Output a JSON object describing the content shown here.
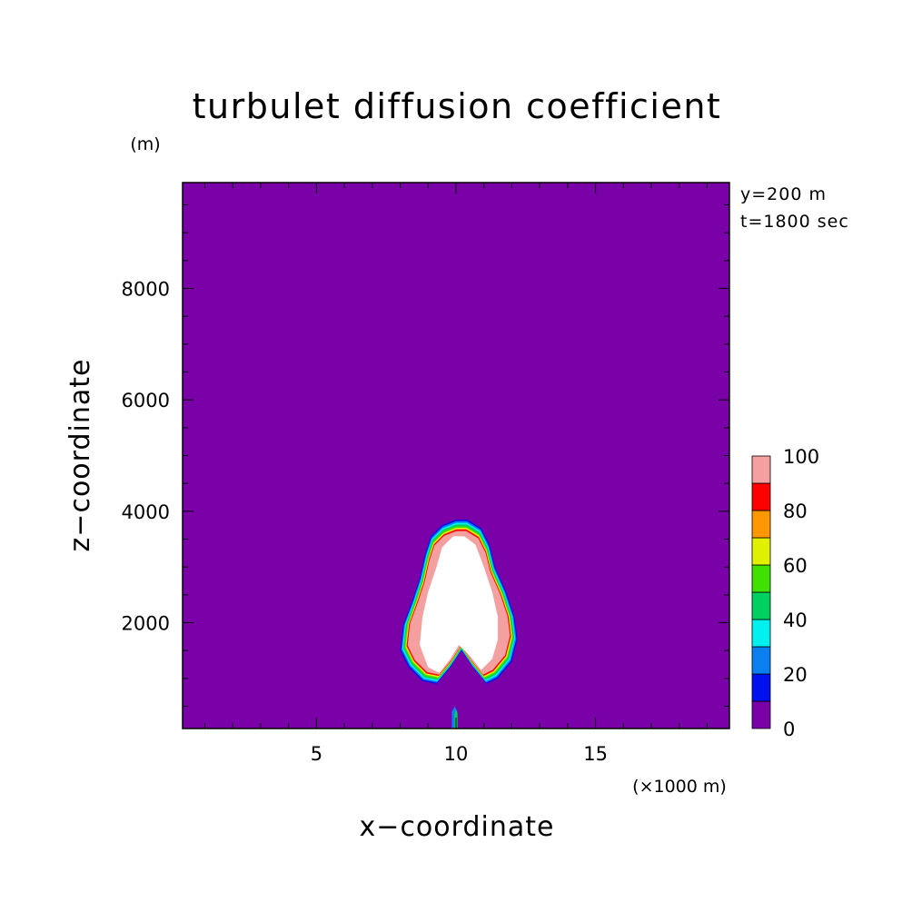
{
  "chart_data": {
    "type": "contour",
    "title": "turbulet diffusion coefficient",
    "xlabel": "x−coordinate",
    "ylabel": "z−coordinate",
    "x_unit": "(×1000 m)",
    "y_unit": "(m)",
    "annotations": [
      "y=200 m",
      "t=1800 sec"
    ],
    "xlim": [
      0.2,
      19.8
    ],
    "ylim": [
      100,
      9900
    ],
    "x_ticks": [
      5,
      10,
      15
    ],
    "y_ticks": [
      2000,
      4000,
      6000,
      8000
    ],
    "background_level": 0,
    "colorbar": {
      "levels": [
        0,
        10,
        20,
        30,
        40,
        50,
        60,
        70,
        80,
        90,
        100
      ],
      "tick_labels": [
        "0",
        "20",
        "40",
        "60",
        "80",
        "100"
      ],
      "colors": [
        "#7a00a8",
        "#0010ee",
        "#0a7ff0",
        "#00f0f0",
        "#00d060",
        "#40e000",
        "#e0f000",
        "#ff9800",
        "#ff0000",
        "#f4a0a0"
      ]
    },
    "plume_outline": [
      [
        8.0,
        1500
      ],
      [
        8.1,
        1950
      ],
      [
        8.4,
        2350
      ],
      [
        8.7,
        2800
      ],
      [
        8.9,
        3250
      ],
      [
        9.1,
        3550
      ],
      [
        9.5,
        3750
      ],
      [
        10.0,
        3850
      ],
      [
        10.4,
        3850
      ],
      [
        10.9,
        3700
      ],
      [
        11.2,
        3400
      ],
      [
        11.4,
        3000
      ],
      [
        11.8,
        2550
      ],
      [
        12.1,
        2100
      ],
      [
        12.2,
        1700
      ],
      [
        12.0,
        1300
      ],
      [
        11.5,
        1000
      ],
      [
        11.1,
        900
      ],
      [
        10.6,
        1200
      ],
      [
        10.2,
        1500
      ],
      [
        9.8,
        1200
      ],
      [
        9.3,
        900
      ],
      [
        8.8,
        950
      ],
      [
        8.3,
        1200
      ]
    ],
    "plume_core": [
      [
        8.7,
        1600
      ],
      [
        8.8,
        2100
      ],
      [
        9.0,
        2550
      ],
      [
        9.3,
        3000
      ],
      [
        9.5,
        3350
      ],
      [
        9.9,
        3550
      ],
      [
        10.3,
        3550
      ],
      [
        10.7,
        3400
      ],
      [
        11.0,
        3000
      ],
      [
        11.3,
        2550
      ],
      [
        11.5,
        2100
      ],
      [
        11.5,
        1700
      ],
      [
        11.3,
        1350
      ],
      [
        10.9,
        1150
      ],
      [
        10.5,
        1400
      ],
      [
        10.1,
        1600
      ],
      [
        9.8,
        1350
      ],
      [
        9.4,
        1100
      ],
      [
        9.0,
        1200
      ]
    ],
    "stem": [
      [
        9.85,
        100
      ],
      [
        9.85,
        400
      ],
      [
        9.95,
        500
      ],
      [
        10.05,
        400
      ],
      [
        10.05,
        100
      ]
    ]
  }
}
